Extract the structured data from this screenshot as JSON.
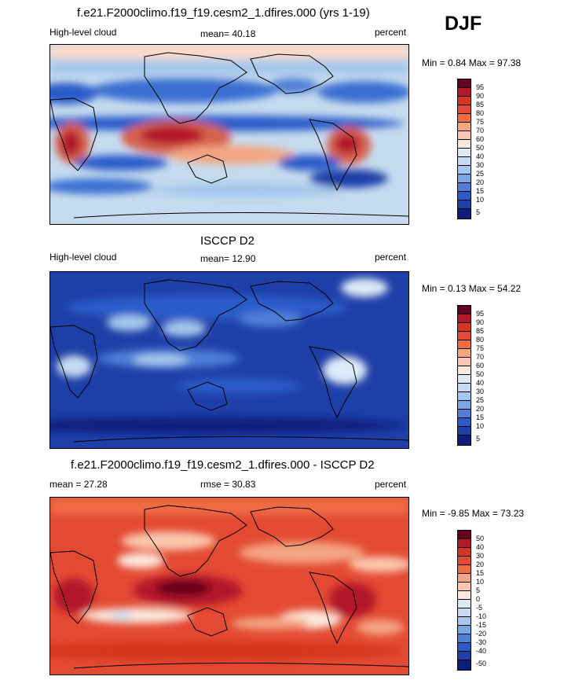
{
  "season": "DJF",
  "panels": [
    {
      "title": "f.e21.F2000climo.f19_f19.cesm2_1.dfires.000 (yrs 1-19)",
      "left": "High-level cloud",
      "center": "mean=  40.18",
      "right": "percent",
      "minmax": "Min =   0.84 Max =  97.38",
      "cbar_labels": [
        "95",
        "90",
        "85",
        "80",
        "75",
        "70",
        "60",
        "50",
        "40",
        "30",
        "25",
        "20",
        "15",
        "10",
        "5"
      ],
      "palette": "model"
    },
    {
      "title": "ISCCP D2",
      "left": "High-level cloud",
      "center": "mean=  12.90",
      "right": "percent",
      "minmax": "Min =   0.13 Max =  54.22",
      "cbar_labels": [
        "95",
        "90",
        "85",
        "80",
        "75",
        "70",
        "60",
        "50",
        "40",
        "30",
        "25",
        "20",
        "15",
        "10",
        "5"
      ],
      "palette": "obs"
    },
    {
      "title": "f.e21.F2000climo.f19_f19.cesm2_1.dfires.000 - ISCCP D2",
      "left": "mean =  27.28",
      "center": "rmse =  30.83",
      "right": "percent",
      "minmax": "Min =  -9.85 Max =  73.23",
      "cbar_labels": [
        "50",
        "40",
        "30",
        "20",
        "15",
        "10",
        "5",
        "0",
        "-5",
        "-10",
        "-15",
        "-20",
        "-30",
        "-40",
        "-50"
      ],
      "palette": "diff"
    }
  ],
  "chart_data": [
    {
      "type": "heatmap",
      "title": "f.e21.F2000climo.f19_f19.cesm2_1.dfires.000 (yrs 1-19)",
      "variable": "High-level cloud",
      "units": "percent",
      "mean": 40.18,
      "min": 0.84,
      "max": 97.38,
      "contour_levels": [
        5,
        10,
        15,
        20,
        25,
        30,
        40,
        50,
        60,
        70,
        75,
        80,
        85,
        90,
        95
      ]
    },
    {
      "type": "heatmap",
      "title": "ISCCP D2",
      "variable": "High-level cloud",
      "units": "percent",
      "mean": 12.9,
      "min": 0.13,
      "max": 54.22,
      "contour_levels": [
        5,
        10,
        15,
        20,
        25,
        30,
        40,
        50,
        60,
        70,
        75,
        80,
        85,
        90,
        95
      ]
    },
    {
      "type": "heatmap",
      "title": "f.e21.F2000climo.f19_f19.cesm2_1.dfires.000 - ISCCP D2",
      "units": "percent",
      "mean": 27.28,
      "rmse": 30.83,
      "min": -9.85,
      "max": 73.23,
      "contour_levels": [
        -50,
        -40,
        -30,
        -20,
        -15,
        -10,
        -5,
        0,
        5,
        10,
        15,
        20,
        30,
        40,
        50
      ]
    }
  ]
}
